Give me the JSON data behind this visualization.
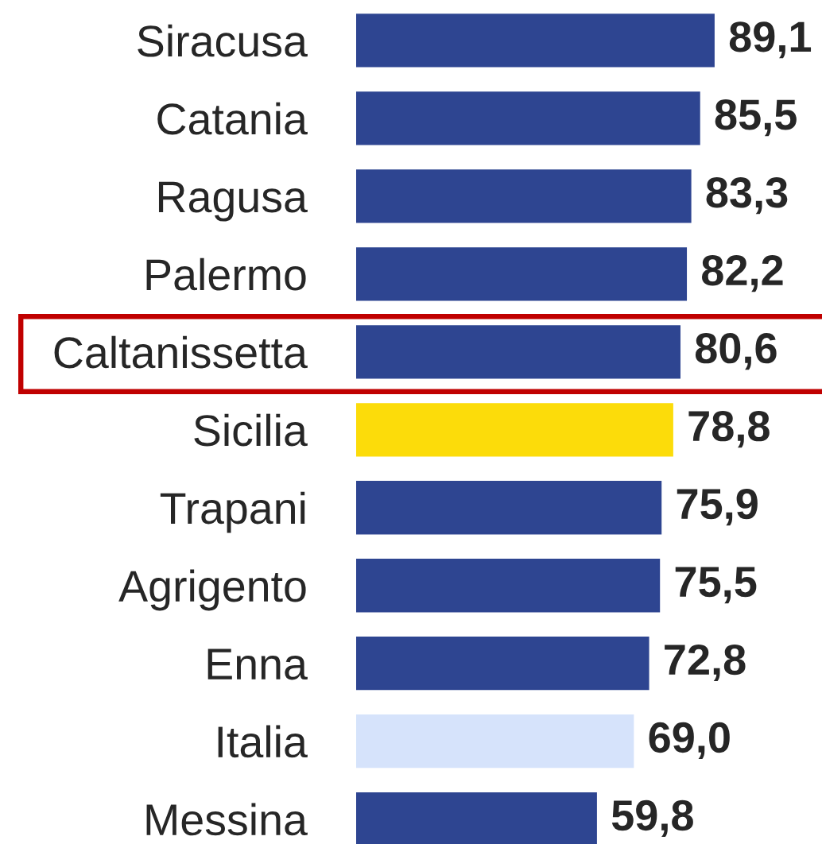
{
  "chart_data": {
    "type": "bar",
    "orientation": "horizontal",
    "categories": [
      "Siracusa",
      "Catania",
      "Ragusa",
      "Palermo",
      "Caltanissetta",
      "Sicilia",
      "Trapani",
      "Agrigento",
      "Enna",
      "Italia",
      "Messina"
    ],
    "values": [
      89.1,
      85.5,
      83.3,
      82.2,
      80.6,
      78.8,
      75.9,
      75.5,
      72.8,
      69.0,
      59.8
    ],
    "colors": [
      "#2e4591",
      "#2e4591",
      "#2e4591",
      "#2e4591",
      "#2e4591",
      "#fcdc0a",
      "#2e4591",
      "#2e4591",
      "#2e4591",
      "#d6e3fb",
      "#2e4591"
    ],
    "value_labels": [
      "89,1",
      "85,5",
      "83,3",
      "82,2",
      "80,6",
      "78,8",
      "75,9",
      "75,5",
      "72,8",
      "69,0",
      "59,8"
    ],
    "tick_labels": "y"
  }
}
